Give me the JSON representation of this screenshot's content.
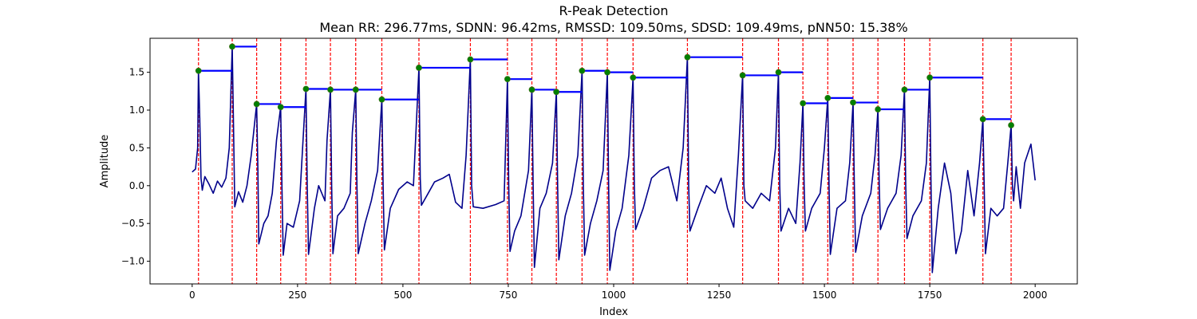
{
  "chart_data": {
    "type": "line",
    "title": "R-Peak Detection",
    "subtitle": "Mean RR: 296.77ms, SDNN: 96.42ms, RMSSD: 109.50ms, SDSD: 109.49ms, pNN50: 15.38%",
    "xlabel": "Index",
    "ylabel": "Amplitude",
    "xlim": [
      -100,
      2100
    ],
    "ylim": [
      -1.3,
      1.95
    ],
    "xticks": [
      0,
      250,
      500,
      750,
      1000,
      1250,
      1500,
      1750,
      2000
    ],
    "xtick_labels": [
      "0",
      "250",
      "500",
      "750",
      "1000",
      "1250",
      "1500",
      "1750",
      "2000"
    ],
    "yticks": [
      -1.0,
      -0.5,
      0.0,
      0.5,
      1.0,
      1.5
    ],
    "ytick_labels": [
      "−1.0",
      "−0.5",
      "0.0",
      "0.5",
      "1.0",
      "1.5"
    ],
    "signal_color": "#00008b",
    "peak_color": "#008000",
    "vline_color": "#ff0000",
    "rr_color": "#0000ff",
    "peaks": [
      {
        "x": 15,
        "y": 1.52
      },
      {
        "x": 95,
        "y": 1.84
      },
      {
        "x": 153,
        "y": 1.08
      },
      {
        "x": 210,
        "y": 1.04
      },
      {
        "x": 270,
        "y": 1.28
      },
      {
        "x": 328,
        "y": 1.27
      },
      {
        "x": 388,
        "y": 1.27
      },
      {
        "x": 450,
        "y": 1.14
      },
      {
        "x": 538,
        "y": 1.56
      },
      {
        "x": 660,
        "y": 1.67
      },
      {
        "x": 748,
        "y": 1.41
      },
      {
        "x": 806,
        "y": 1.27
      },
      {
        "x": 864,
        "y": 1.24
      },
      {
        "x": 925,
        "y": 1.52
      },
      {
        "x": 985,
        "y": 1.5
      },
      {
        "x": 1046,
        "y": 1.43
      },
      {
        "x": 1175,
        "y": 1.7
      },
      {
        "x": 1306,
        "y": 1.46
      },
      {
        "x": 1391,
        "y": 1.5
      },
      {
        "x": 1449,
        "y": 1.09
      },
      {
        "x": 1508,
        "y": 1.16
      },
      {
        "x": 1568,
        "y": 1.1
      },
      {
        "x": 1627,
        "y": 1.01
      },
      {
        "x": 1690,
        "y": 1.27
      },
      {
        "x": 1750,
        "y": 1.43
      },
      {
        "x": 1876,
        "y": 0.88
      },
      {
        "x": 1943,
        "y": 0.8
      }
    ],
    "signal": [
      [
        0,
        0.18
      ],
      [
        8,
        0.22
      ],
      [
        13,
        0.5
      ],
      [
        15,
        1.52
      ],
      [
        18,
        0.9
      ],
      [
        21,
        0.1
      ],
      [
        24,
        -0.06
      ],
      [
        30,
        0.12
      ],
      [
        40,
        0.02
      ],
      [
        50,
        -0.1
      ],
      [
        60,
        0.06
      ],
      [
        70,
        -0.02
      ],
      [
        80,
        0.1
      ],
      [
        88,
        0.5
      ],
      [
        95,
        1.84
      ],
      [
        98,
        0.8
      ],
      [
        101,
        -0.28
      ],
      [
        110,
        -0.08
      ],
      [
        120,
        -0.22
      ],
      [
        130,
        0.0
      ],
      [
        140,
        0.4
      ],
      [
        153,
        1.08
      ],
      [
        156,
        0.2
      ],
      [
        158,
        -0.77
      ],
      [
        170,
        -0.5
      ],
      [
        180,
        -0.4
      ],
      [
        190,
        -0.1
      ],
      [
        200,
        0.6
      ],
      [
        210,
        1.04
      ],
      [
        213,
        0.0
      ],
      [
        216,
        -0.92
      ],
      [
        225,
        -0.5
      ],
      [
        240,
        -0.55
      ],
      [
        255,
        -0.2
      ],
      [
        262,
        0.5
      ],
      [
        270,
        1.28
      ],
      [
        273,
        0.0
      ],
      [
        276,
        -0.91
      ],
      [
        290,
        -0.3
      ],
      [
        300,
        0.0
      ],
      [
        315,
        -0.2
      ],
      [
        320,
        0.6
      ],
      [
        328,
        1.27
      ],
      [
        331,
        0.0
      ],
      [
        334,
        -0.9
      ],
      [
        345,
        -0.4
      ],
      [
        360,
        -0.3
      ],
      [
        375,
        -0.1
      ],
      [
        380,
        0.7
      ],
      [
        388,
        1.27
      ],
      [
        391,
        0.0
      ],
      [
        394,
        -0.9
      ],
      [
        410,
        -0.5
      ],
      [
        425,
        -0.2
      ],
      [
        440,
        0.2
      ],
      [
        450,
        1.14
      ],
      [
        453,
        0.0
      ],
      [
        456,
        -0.85
      ],
      [
        470,
        -0.3
      ],
      [
        490,
        -0.05
      ],
      [
        510,
        0.05
      ],
      [
        525,
        0.0
      ],
      [
        538,
        1.56
      ],
      [
        541,
        0.1
      ],
      [
        544,
        -0.26
      ],
      [
        560,
        -0.1
      ],
      [
        575,
        0.05
      ],
      [
        595,
        0.1
      ],
      [
        610,
        0.15
      ],
      [
        625,
        -0.22
      ],
      [
        640,
        -0.3
      ],
      [
        650,
        0.4
      ],
      [
        660,
        1.67
      ],
      [
        663,
        0.0
      ],
      [
        667,
        -0.28
      ],
      [
        690,
        -0.3
      ],
      [
        720,
        -0.25
      ],
      [
        740,
        -0.2
      ],
      [
        748,
        1.41
      ],
      [
        751,
        0.0
      ],
      [
        754,
        -0.87
      ],
      [
        765,
        -0.6
      ],
      [
        780,
        -0.4
      ],
      [
        798,
        0.2
      ],
      [
        806,
        1.27
      ],
      [
        809,
        0.0
      ],
      [
        812,
        -1.08
      ],
      [
        825,
        -0.3
      ],
      [
        840,
        -0.1
      ],
      [
        855,
        0.3
      ],
      [
        864,
        1.24
      ],
      [
        867,
        0.0
      ],
      [
        870,
        -0.98
      ],
      [
        885,
        -0.4
      ],
      [
        900,
        -0.1
      ],
      [
        915,
        0.4
      ],
      [
        925,
        1.52
      ],
      [
        928,
        0.0
      ],
      [
        931,
        -0.92
      ],
      [
        945,
        -0.5
      ],
      [
        960,
        -0.2
      ],
      [
        975,
        0.2
      ],
      [
        985,
        1.5
      ],
      [
        988,
        0.0
      ],
      [
        991,
        -1.12
      ],
      [
        1005,
        -0.6
      ],
      [
        1020,
        -0.3
      ],
      [
        1036,
        0.4
      ],
      [
        1046,
        1.43
      ],
      [
        1049,
        0.0
      ],
      [
        1052,
        -0.58
      ],
      [
        1070,
        -0.3
      ],
      [
        1090,
        0.1
      ],
      [
        1110,
        0.2
      ],
      [
        1130,
        0.25
      ],
      [
        1150,
        -0.2
      ],
      [
        1165,
        0.5
      ],
      [
        1175,
        1.7
      ],
      [
        1178,
        0.0
      ],
      [
        1181,
        -0.6
      ],
      [
        1200,
        -0.3
      ],
      [
        1220,
        0.0
      ],
      [
        1240,
        -0.1
      ],
      [
        1255,
        0.1
      ],
      [
        1270,
        -0.3
      ],
      [
        1285,
        -0.55
      ],
      [
        1296,
        0.4
      ],
      [
        1306,
        1.46
      ],
      [
        1309,
        0.0
      ],
      [
        1312,
        -0.2
      ],
      [
        1330,
        -0.3
      ],
      [
        1350,
        -0.1
      ],
      [
        1370,
        -0.2
      ],
      [
        1384,
        0.5
      ],
      [
        1391,
        1.5
      ],
      [
        1394,
        0.0
      ],
      [
        1397,
        -0.6
      ],
      [
        1415,
        -0.3
      ],
      [
        1432,
        -0.5
      ],
      [
        1442,
        0.3
      ],
      [
        1449,
        1.09
      ],
      [
        1452,
        0.0
      ],
      [
        1455,
        -0.6
      ],
      [
        1470,
        -0.3
      ],
      [
        1490,
        -0.1
      ],
      [
        1500,
        0.5
      ],
      [
        1508,
        1.16
      ],
      [
        1511,
        0.0
      ],
      [
        1514,
        -0.91
      ],
      [
        1530,
        -0.3
      ],
      [
        1550,
        -0.2
      ],
      [
        1560,
        0.3
      ],
      [
        1568,
        1.1
      ],
      [
        1571,
        0.0
      ],
      [
        1574,
        -0.88
      ],
      [
        1590,
        -0.4
      ],
      [
        1610,
        -0.1
      ],
      [
        1620,
        0.4
      ],
      [
        1627,
        1.01
      ],
      [
        1630,
        0.0
      ],
      [
        1633,
        -0.58
      ],
      [
        1650,
        -0.3
      ],
      [
        1670,
        -0.1
      ],
      [
        1682,
        0.4
      ],
      [
        1690,
        1.27
      ],
      [
        1693,
        0.0
      ],
      [
        1696,
        -0.7
      ],
      [
        1710,
        -0.4
      ],
      [
        1730,
        -0.2
      ],
      [
        1742,
        0.3
      ],
      [
        1750,
        1.43
      ],
      [
        1753,
        0.0
      ],
      [
        1756,
        -1.15
      ],
      [
        1770,
        -0.3
      ],
      [
        1785,
        0.3
      ],
      [
        1800,
        -0.1
      ],
      [
        1812,
        -0.9
      ],
      [
        1825,
        -0.6
      ],
      [
        1840,
        0.2
      ],
      [
        1855,
        -0.4
      ],
      [
        1868,
        0.3
      ],
      [
        1876,
        0.88
      ],
      [
        1879,
        0.0
      ],
      [
        1882,
        -0.9
      ],
      [
        1895,
        -0.3
      ],
      [
        1910,
        -0.4
      ],
      [
        1925,
        -0.3
      ],
      [
        1935,
        0.3
      ],
      [
        1943,
        0.8
      ],
      [
        1946,
        0.0
      ],
      [
        1949,
        -0.2
      ],
      [
        1955,
        0.25
      ],
      [
        1965,
        -0.3
      ],
      [
        1975,
        0.3
      ],
      [
        1990,
        0.55
      ],
      [
        2000,
        0.07
      ]
    ]
  }
}
